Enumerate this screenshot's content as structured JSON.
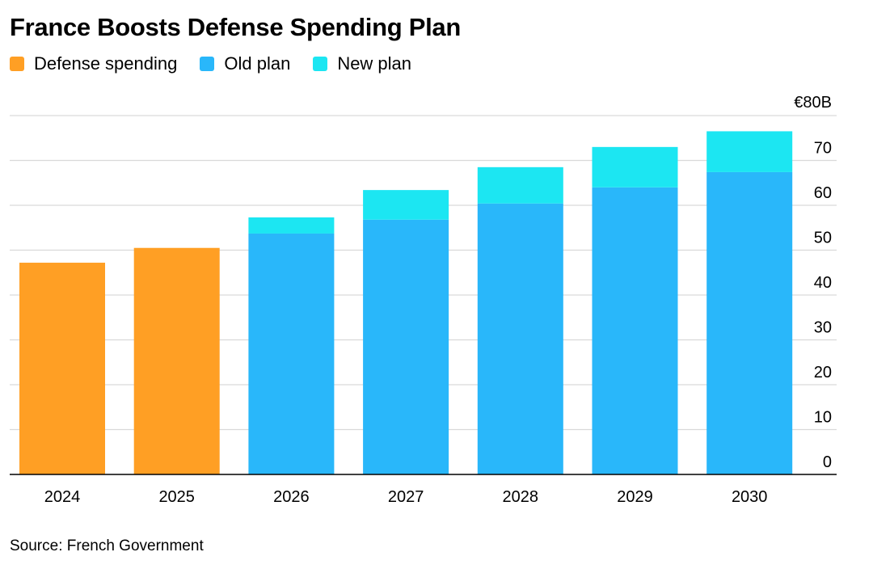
{
  "chart_data": {
    "type": "bar",
    "stacked": true,
    "title": "France Boosts Defense Spending Plan",
    "legend": [
      {
        "name": "Defense spending",
        "color": "#ff9f24"
      },
      {
        "name": "Old plan",
        "color": "#29b7fa"
      },
      {
        "name": "New plan",
        "color": "#1ce6f2"
      }
    ],
    "categories": [
      "2024",
      "2025",
      "2026",
      "2027",
      "2028",
      "2029",
      "2030"
    ],
    "series": [
      {
        "name": "Defense spending",
        "color": "#ff9f24",
        "values": [
          47.2,
          50.5,
          0,
          0,
          0,
          0,
          0
        ]
      },
      {
        "name": "Old plan",
        "color": "#29b7fa",
        "values": [
          0,
          0,
          53.7,
          56.8,
          60.4,
          64.0,
          67.4
        ]
      },
      {
        "name": "New plan",
        "color": "#1ce6f2",
        "values": [
          0,
          0,
          3.6,
          6.6,
          8.1,
          9.0,
          9.1
        ]
      }
    ],
    "yticks": [
      0,
      10,
      20,
      30,
      40,
      50,
      60,
      70,
      80
    ],
    "ytick_labels": [
      "0",
      "10",
      "20",
      "30",
      "40",
      "50",
      "60",
      "70",
      "€80B"
    ],
    "ylim": [
      0,
      80
    ],
    "xlabel": "",
    "ylabel": "",
    "grid": true,
    "legend_position": "top-left"
  },
  "source": "Source: French Government"
}
